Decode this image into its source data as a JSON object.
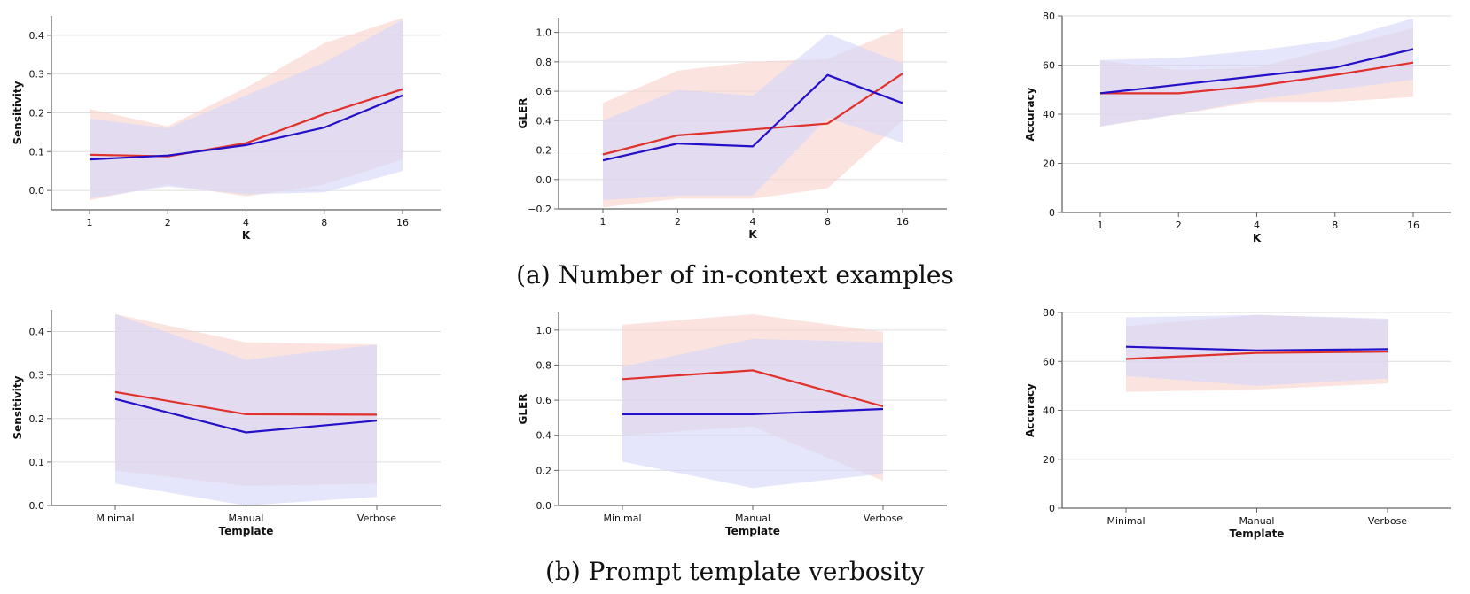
{
  "colors": {
    "series_red": "#e0312c",
    "series_blue": "#2410c8",
    "band_red": "#f9d2cc",
    "band_blue": "#d4d6f9"
  },
  "captions": {
    "a": "(a) Number of in-context examples",
    "b": "(b) Prompt template verbosity"
  },
  "chart_data": [
    {
      "type": "line",
      "xlabel": "K",
      "ylabel": "Sensitivity",
      "categories": [
        "1",
        "2",
        "4",
        "8",
        "16"
      ],
      "ylim": [
        -0.05,
        0.45
      ],
      "yticks": [
        0.0,
        0.1,
        0.2,
        0.3,
        0.4
      ],
      "ytick_labels": [
        "0.0",
        "0.1",
        "0.2",
        "0.3",
        "0.4"
      ],
      "grid": true,
      "series": [
        {
          "color": "red",
          "values": [
            0.092,
            0.088,
            0.122,
            0.197,
            0.261
          ],
          "lower": [
            -0.025,
            0.015,
            -0.015,
            0.015,
            0.08
          ],
          "upper": [
            0.21,
            0.165,
            0.265,
            0.38,
            0.445
          ]
        },
        {
          "color": "blue",
          "values": [
            0.08,
            0.09,
            0.117,
            0.162,
            0.245
          ],
          "lower": [
            -0.02,
            0.01,
            -0.01,
            -0.005,
            0.05
          ],
          "upper": [
            0.185,
            0.16,
            0.245,
            0.33,
            0.44
          ]
        }
      ]
    },
    {
      "type": "line",
      "xlabel": "K",
      "ylabel": "GLER",
      "categories": [
        "1",
        "2",
        "4",
        "8",
        "16"
      ],
      "ylim": [
        -0.2,
        1.1
      ],
      "yticks": [
        -0.2,
        0.0,
        0.2,
        0.4,
        0.6,
        0.8,
        1.0
      ],
      "ytick_labels": [
        "−0.2",
        "0.0",
        "0.2",
        "0.4",
        "0.6",
        "0.8",
        "1.0"
      ],
      "grid": true,
      "series": [
        {
          "color": "red",
          "values": [
            0.17,
            0.3,
            0.34,
            0.38,
            0.72
          ],
          "lower": [
            -0.19,
            -0.13,
            -0.13,
            -0.06,
            0.4
          ],
          "upper": [
            0.52,
            0.74,
            0.8,
            0.82,
            1.03
          ]
        },
        {
          "color": "blue",
          "values": [
            0.13,
            0.245,
            0.225,
            0.71,
            0.52
          ],
          "lower": [
            -0.14,
            -0.11,
            -0.11,
            0.42,
            0.25
          ],
          "upper": [
            0.4,
            0.61,
            0.57,
            0.99,
            0.79
          ]
        }
      ]
    },
    {
      "type": "line",
      "xlabel": "K",
      "ylabel": "Accuracy",
      "categories": [
        "1",
        "2",
        "4",
        "8",
        "16"
      ],
      "ylim": [
        0,
        80
      ],
      "yticks": [
        0,
        20,
        40,
        60,
        80
      ],
      "ytick_labels": [
        "0",
        "20",
        "40",
        "60",
        "80"
      ],
      "grid": true,
      "series": [
        {
          "color": "red",
          "values": [
            48.5,
            48.5,
            51.5,
            56,
            61
          ],
          "lower": [
            35,
            40,
            45,
            45,
            47
          ],
          "upper": [
            62,
            58,
            59,
            67,
            75
          ]
        },
        {
          "color": "blue",
          "values": [
            48.5,
            52,
            55.5,
            59,
            66.5
          ],
          "lower": [
            35,
            40,
            46,
            50,
            54
          ],
          "upper": [
            62,
            63,
            66,
            70,
            79
          ]
        }
      ]
    },
    {
      "type": "line",
      "xlabel": "Template",
      "ylabel": "Sensitivity",
      "categories": [
        "Minimal",
        "Manual",
        "Verbose"
      ],
      "ylim": [
        0,
        0.45
      ],
      "yticks": [
        0.0,
        0.1,
        0.2,
        0.3,
        0.4
      ],
      "ytick_labels": [
        "0.0",
        "0.1",
        "0.2",
        "0.3",
        "0.4"
      ],
      "grid": true,
      "series": [
        {
          "color": "red",
          "values": [
            0.261,
            0.21,
            0.209
          ],
          "lower": [
            0.08,
            0.045,
            0.05
          ],
          "upper": [
            0.44,
            0.375,
            0.37
          ]
        },
        {
          "color": "blue",
          "values": [
            0.245,
            0.168,
            0.195
          ],
          "lower": [
            0.05,
            0.0,
            0.02
          ],
          "upper": [
            0.44,
            0.335,
            0.37
          ]
        }
      ]
    },
    {
      "type": "line",
      "xlabel": "Template",
      "ylabel": "GLER",
      "categories": [
        "Minimal",
        "Manual",
        "Verbose"
      ],
      "ylim": [
        0,
        1.1
      ],
      "yticks": [
        0.0,
        0.2,
        0.4,
        0.6,
        0.8,
        1.0
      ],
      "ytick_labels": [
        "0.0",
        "0.2",
        "0.4",
        "0.6",
        "0.8",
        "1.0"
      ],
      "grid": true,
      "series": [
        {
          "color": "red",
          "values": [
            0.72,
            0.77,
            0.565
          ],
          "lower": [
            0.4,
            0.45,
            0.14
          ],
          "upper": [
            1.03,
            1.09,
            0.99
          ]
        },
        {
          "color": "blue",
          "values": [
            0.52,
            0.52,
            0.55
          ],
          "lower": [
            0.25,
            0.1,
            0.18
          ],
          "upper": [
            0.79,
            0.95,
            0.93
          ]
        }
      ]
    },
    {
      "type": "line",
      "xlabel": "Template",
      "ylabel": "Accuracy",
      "categories": [
        "Minimal",
        "Manual",
        "Verbose"
      ],
      "ylim": [
        0,
        80
      ],
      "yticks": [
        0,
        20,
        40,
        60,
        80
      ],
      "ytick_labels": [
        "0",
        "20",
        "40",
        "60",
        "80"
      ],
      "grid": true,
      "series": [
        {
          "color": "red",
          "values": [
            61,
            63.5,
            64
          ],
          "lower": [
            47.5,
            48.5,
            51
          ],
          "upper": [
            74.5,
            79,
            77
          ]
        },
        {
          "color": "blue",
          "values": [
            66,
            64.5,
            65
          ],
          "lower": [
            54,
            50,
            53
          ],
          "upper": [
            78,
            79,
            77.5
          ]
        }
      ]
    }
  ]
}
